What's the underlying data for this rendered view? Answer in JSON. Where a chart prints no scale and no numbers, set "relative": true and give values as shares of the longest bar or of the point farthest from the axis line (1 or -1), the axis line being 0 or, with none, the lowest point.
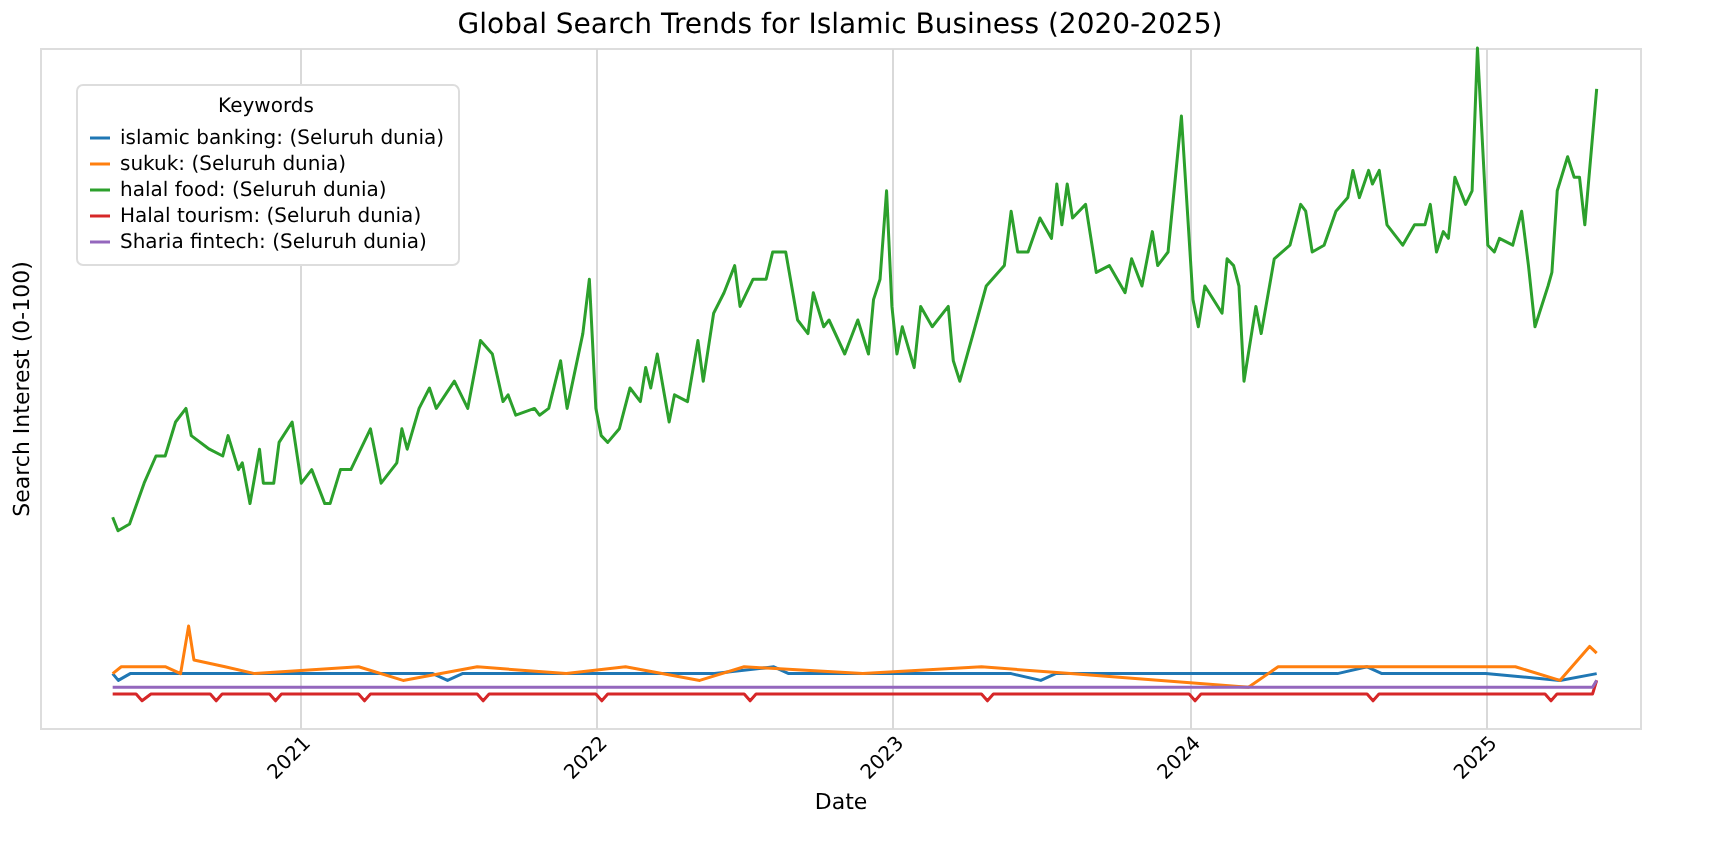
{
  "chart_data": {
    "type": "line",
    "title": "Global Search Trends for Islamic Business (2020-2025)",
    "xlabel": "Date",
    "ylabel": "Search Interest (0-100)",
    "legend_title": "Keywords",
    "relative": true,
    "xlim": [
      2020.126,
      2025.52
    ],
    "xticks": [
      2021,
      2022,
      2023,
      2024,
      2025
    ],
    "grid": "x",
    "legend": "top left",
    "line_style": "solid",
    "marker": "none",
    "series": [
      {
        "name": "islamic banking: (Seluruh dunia)",
        "color": "#1f77b4",
        "x": [
          2020.371,
          2020.39,
          2020.43,
          2020.9,
          2021.0,
          2021.45,
          2021.5,
          2021.55,
          2022.0,
          2022.4,
          2022.6,
          2022.65,
          2023.0,
          2023.4,
          2023.5,
          2023.55,
          2024.0,
          2024.5,
          2024.6,
          2024.65,
          2025.0,
          2025.25,
          2025.374
        ],
        "values": [
          0.08,
          0.07,
          0.08,
          0.08,
          0.08,
          0.08,
          0.07,
          0.08,
          0.08,
          0.08,
          0.09,
          0.08,
          0.08,
          0.08,
          0.07,
          0.08,
          0.08,
          0.08,
          0.09,
          0.08,
          0.08,
          0.07,
          0.08
        ]
      },
      {
        "name": "sukuk: (Seluruh dunia)",
        "color": "#ff7f0e",
        "x": [
          2020.371,
          2020.4,
          2020.55,
          2020.6,
          2020.627,
          2020.645,
          2020.75,
          2020.85,
          2021.2,
          2021.35,
          2021.6,
          2021.9,
          2022.1,
          2022.35,
          2022.5,
          2022.9,
          2023.3,
          2023.6,
          2024.2,
          2024.3,
          2024.8,
          2025.1,
          2025.25,
          2025.35,
          2025.374
        ],
        "values": [
          0.08,
          0.09,
          0.09,
          0.08,
          0.15,
          0.1,
          0.09,
          0.08,
          0.09,
          0.07,
          0.09,
          0.08,
          0.09,
          0.07,
          0.09,
          0.08,
          0.09,
          0.08,
          0.06,
          0.09,
          0.09,
          0.09,
          0.07,
          0.12,
          0.11
        ]
      },
      {
        "name": "halal food: (Seluruh dunia)",
        "color": "#2ca02c",
        "x": [
          2020.371,
          2020.389,
          2020.428,
          2020.477,
          2020.517,
          2020.548,
          2020.583,
          2020.618,
          2020.636,
          2020.697,
          2020.742,
          2020.76,
          2020.795,
          2020.808,
          2020.834,
          2020.866,
          2020.879,
          2020.914,
          2020.932,
          2020.976,
          2021.007,
          2021.042,
          2021.086,
          2021.104,
          2021.139,
          2021.174,
          2021.24,
          2021.276,
          2021.329,
          2021.346,
          2021.364,
          2021.404,
          2021.439,
          2021.462,
          2021.523,
          2021.568,
          2021.611,
          2021.651,
          2021.687,
          2021.704,
          2021.73,
          2021.793,
          2021.81,
          2021.841,
          2021.881,
          2021.903,
          2021.956,
          2021.978,
          2022.0,
          2022.018,
          2022.04,
          2022.079,
          2022.115,
          2022.15,
          2022.168,
          2022.185,
          2022.207,
          2022.247,
          2022.265,
          2022.309,
          2022.344,
          2022.362,
          2022.397,
          2022.432,
          2022.468,
          2022.486,
          2022.53,
          2022.574,
          2022.596,
          2022.64,
          2022.68,
          2022.715,
          2022.733,
          2022.768,
          2022.786,
          2022.839,
          2022.883,
          2022.919,
          2022.936,
          2022.958,
          2022.98,
          2022.998,
          2023.015,
          2023.033,
          2023.073,
          2023.095,
          2023.134,
          2023.188,
          2023.205,
          2023.227,
          2023.272,
          2023.316,
          2023.377,
          2023.4,
          2023.422,
          2023.457,
          2023.497,
          2023.536,
          2023.554,
          2023.571,
          2023.589,
          2023.607,
          2023.651,
          2023.687,
          2023.731,
          2023.784,
          2023.806,
          2023.841,
          2023.876,
          2023.894,
          2023.929,
          2023.974,
          2024.013,
          2024.031,
          2024.053,
          2024.111,
          2024.128,
          2024.15,
          2024.168,
          2024.185,
          2024.225,
          2024.243,
          2024.287,
          2024.34,
          2024.376,
          2024.393,
          2024.415,
          2024.455,
          2024.495,
          2024.535,
          2024.552,
          2024.574,
          2024.605,
          2024.618,
          2024.641,
          2024.667,
          2024.72,
          2024.76,
          2024.795,
          2024.813,
          2024.834,
          2024.857,
          2024.874,
          2024.896,
          2024.932,
          2024.954,
          2024.972,
          2025.007,
          2025.029,
          2025.046,
          2025.091,
          2025.121,
          2025.144,
          2025.166,
          2025.21,
          2025.223,
          2025.241,
          2025.276,
          2025.298,
          2025.316,
          2025.334,
          2025.374
        ],
        "values": [
          0.31,
          0.29,
          0.3,
          0.36,
          0.4,
          0.4,
          0.45,
          0.47,
          0.43,
          0.41,
          0.4,
          0.43,
          0.38,
          0.39,
          0.33,
          0.41,
          0.36,
          0.36,
          0.42,
          0.45,
          0.36,
          0.38,
          0.33,
          0.33,
          0.38,
          0.38,
          0.44,
          0.36,
          0.39,
          0.44,
          0.41,
          0.47,
          0.5,
          0.47,
          0.51,
          0.47,
          0.57,
          0.55,
          0.48,
          0.49,
          0.46,
          0.47,
          0.46,
          0.47,
          0.54,
          0.47,
          0.58,
          0.66,
          0.47,
          0.43,
          0.42,
          0.44,
          0.5,
          0.48,
          0.53,
          0.5,
          0.55,
          0.45,
          0.49,
          0.48,
          0.57,
          0.51,
          0.61,
          0.64,
          0.68,
          0.62,
          0.66,
          0.66,
          0.7,
          0.7,
          0.6,
          0.58,
          0.64,
          0.59,
          0.6,
          0.55,
          0.6,
          0.55,
          0.63,
          0.66,
          0.79,
          0.62,
          0.55,
          0.59,
          0.53,
          0.62,
          0.59,
          0.62,
          0.54,
          0.51,
          0.58,
          0.65,
          0.68,
          0.76,
          0.7,
          0.7,
          0.75,
          0.72,
          0.8,
          0.74,
          0.8,
          0.75,
          0.77,
          0.67,
          0.68,
          0.64,
          0.69,
          0.65,
          0.73,
          0.68,
          0.7,
          0.9,
          0.63,
          0.59,
          0.65,
          0.61,
          0.69,
          0.68,
          0.65,
          0.51,
          0.62,
          0.58,
          0.69,
          0.71,
          0.77,
          0.76,
          0.7,
          0.71,
          0.76,
          0.78,
          0.82,
          0.78,
          0.82,
          0.8,
          0.82,
          0.74,
          0.71,
          0.74,
          0.74,
          0.77,
          0.7,
          0.73,
          0.72,
          0.81,
          0.77,
          0.79,
          1.0,
          0.71,
          0.7,
          0.72,
          0.71,
          0.76,
          0.68,
          0.59,
          0.65,
          0.67,
          0.79,
          0.84,
          0.81,
          0.81,
          0.74,
          0.94
        ]
      },
      {
        "name": "Halal tourism: (Seluruh dunia)",
        "color": "#d62728",
        "x": [
          2020.371,
          2020.45,
          2020.47,
          2020.5,
          2020.7,
          2020.72,
          2020.74,
          2020.9,
          2020.92,
          2020.94,
          2021.2,
          2021.22,
          2021.24,
          2021.6,
          2021.62,
          2021.64,
          2022.0,
          2022.02,
          2022.04,
          2022.5,
          2022.52,
          2022.54,
          2023.3,
          2023.32,
          2023.34,
          2024.0,
          2024.02,
          2024.04,
          2024.6,
          2024.62,
          2024.64,
          2025.2,
          2025.22,
          2025.24,
          2025.36,
          2025.374
        ],
        "values": [
          0.05,
          0.05,
          0.04,
          0.05,
          0.05,
          0.04,
          0.05,
          0.05,
          0.04,
          0.05,
          0.05,
          0.04,
          0.05,
          0.05,
          0.04,
          0.05,
          0.05,
          0.04,
          0.05,
          0.05,
          0.04,
          0.05,
          0.05,
          0.04,
          0.05,
          0.05,
          0.04,
          0.05,
          0.05,
          0.04,
          0.05,
          0.05,
          0.04,
          0.05,
          0.05,
          0.07
        ]
      },
      {
        "name": "Sharia fintech: (Seluruh dunia)",
        "color": "#9467bd",
        "x": [
          2020.371,
          2021.0,
          2022.0,
          2023.0,
          2024.0,
          2025.0,
          2025.36,
          2025.374
        ],
        "values": [
          0.06,
          0.06,
          0.06,
          0.06,
          0.06,
          0.06,
          0.06,
          0.07
        ]
      }
    ]
  }
}
